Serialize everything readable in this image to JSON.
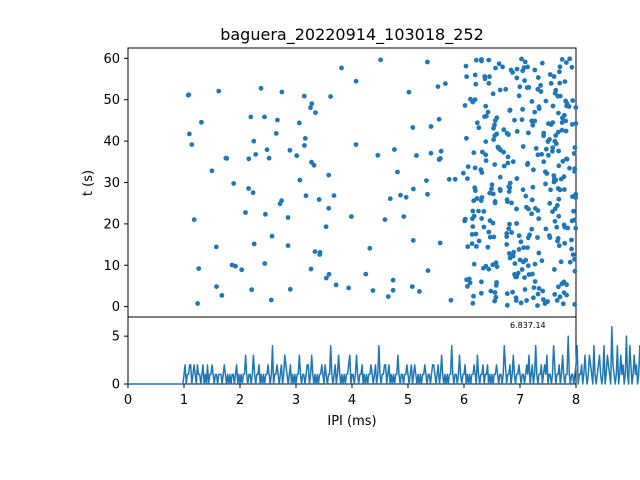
{
  "chart_data": [
    {
      "type": "scatter",
      "title": "baguera_20220914_103018_252",
      "xlabel": "",
      "ylabel": "t (s)",
      "xlim": [
        0,
        8
      ],
      "ylim": [
        62.5,
        -2.5
      ],
      "yticks": [
        0,
        10,
        20,
        30,
        40,
        50,
        60
      ],
      "grid": false,
      "color": "#1f77b4",
      "point_count": 460,
      "x_range_of_points": [
        1.0,
        8.0
      ],
      "y_range_of_points": [
        0,
        60
      ]
    },
    {
      "type": "line",
      "xlabel": "IPI (ms)",
      "ylabel": "",
      "xlim": [
        0,
        8
      ],
      "ylim": [
        0,
        7
      ],
      "xticks": [
        0,
        1,
        2,
        3,
        4,
        5,
        6,
        7,
        8
      ],
      "yticks": [
        0,
        5
      ],
      "grid": false,
      "color": "#1f77b4",
      "annotation": "6.837.14",
      "bin_width": 0.02,
      "counts": [
        0,
        0,
        0,
        0,
        0,
        0,
        0,
        0,
        0,
        0,
        0,
        0,
        0,
        0,
        0,
        0,
        0,
        0,
        0,
        0,
        0,
        0,
        0,
        0,
        0,
        0,
        0,
        0,
        0,
        0,
        0,
        0,
        0,
        0,
        0,
        0,
        0,
        0,
        0,
        0,
        0,
        0,
        0,
        0,
        0,
        0,
        0,
        0,
        0,
        0,
        1,
        2,
        0,
        1,
        1,
        2,
        2,
        0,
        1,
        2,
        1,
        0,
        2,
        1,
        1,
        0,
        1,
        2,
        0,
        1,
        0,
        2,
        0,
        1,
        1,
        2,
        1,
        0,
        1,
        1,
        0,
        1,
        1,
        1,
        0,
        1,
        2,
        1,
        0,
        1,
        0,
        1,
        0,
        1,
        1,
        0,
        1,
        2,
        0,
        1,
        0,
        1,
        0,
        1,
        1,
        3,
        1,
        0,
        1,
        1,
        0,
        1,
        3,
        1,
        0,
        1,
        1,
        2,
        0,
        1,
        0,
        1,
        0,
        1,
        1,
        2,
        1,
        0,
        1,
        4,
        0,
        1,
        1,
        2,
        1,
        0,
        1,
        2,
        0,
        1,
        3,
        2,
        1,
        0,
        1,
        2,
        0,
        1,
        0,
        1,
        0,
        1,
        1,
        3,
        1,
        0,
        1,
        1,
        0,
        1,
        2,
        2,
        0,
        1,
        3,
        1,
        0,
        1,
        0,
        1,
        0,
        1,
        1,
        2,
        1,
        0,
        2,
        1,
        0,
        1,
        1,
        4,
        1,
        0,
        1,
        2,
        0,
        1,
        3,
        1,
        0,
        1,
        0,
        1,
        0,
        1,
        1,
        2,
        3,
        0,
        1,
        1,
        0,
        1,
        3,
        1,
        0,
        1,
        1,
        2,
        0,
        1,
        0,
        1,
        0,
        1,
        1,
        2,
        1,
        0,
        1,
        2,
        0,
        1,
        4,
        1,
        0,
        1,
        1,
        2,
        2,
        0,
        1,
        2,
        0,
        1,
        0,
        1,
        0,
        1,
        1,
        3,
        1,
        0,
        1,
        1,
        0,
        1,
        1,
        2,
        1,
        0,
        1,
        2,
        0,
        1,
        2,
        1,
        0,
        1,
        0,
        1,
        0,
        1,
        1,
        2,
        1,
        0,
        1,
        1,
        0,
        1,
        2,
        2,
        1,
        0,
        1,
        2,
        0,
        1,
        3,
        1,
        0,
        1,
        0,
        1,
        0,
        1,
        1,
        4,
        1,
        0,
        1,
        1,
        0,
        1,
        3,
        1,
        0,
        1,
        1,
        2,
        0,
        1,
        0,
        1,
        0,
        1,
        1,
        2,
        1,
        0,
        3,
        1,
        0,
        1,
        1,
        2,
        0,
        1,
        1,
        2,
        0,
        1,
        0,
        1,
        0,
        1,
        1,
        2,
        1,
        0,
        1,
        1,
        0,
        1,
        4,
        2,
        0,
        1,
        1,
        2,
        0,
        1,
        3,
        1,
        0,
        1,
        1,
        2,
        1,
        0,
        1,
        1,
        0,
        1,
        2,
        1,
        3,
        0,
        1,
        2,
        0,
        1,
        4,
        1,
        0,
        1,
        1,
        2,
        0,
        1,
        2,
        1,
        3,
        0,
        1,
        1,
        0,
        1,
        4,
        2,
        0,
        1,
        1,
        2,
        0,
        1,
        3,
        1,
        0,
        1,
        1,
        5,
        1,
        0,
        1,
        1,
        0,
        1,
        2,
        4,
        0,
        1,
        1,
        2,
        0,
        1,
        3,
        1,
        0,
        1,
        3,
        2,
        1,
        0,
        4,
        1,
        0,
        1,
        2,
        3,
        1,
        0,
        1,
        4,
        0,
        1,
        3,
        2,
        1,
        0,
        6,
        2,
        1,
        0,
        1,
        4,
        0,
        1,
        3,
        1,
        2,
        0,
        1,
        5,
        1,
        0,
        4,
        2,
        0,
        1,
        3,
        1,
        2,
        0,
        1,
        4,
        1,
        0,
        2,
        2,
        4,
        0,
        1,
        3,
        1,
        0,
        1,
        2,
        0,
        1,
        5,
        1,
        0,
        1,
        4,
        2,
        1,
        0
      ]
    }
  ]
}
